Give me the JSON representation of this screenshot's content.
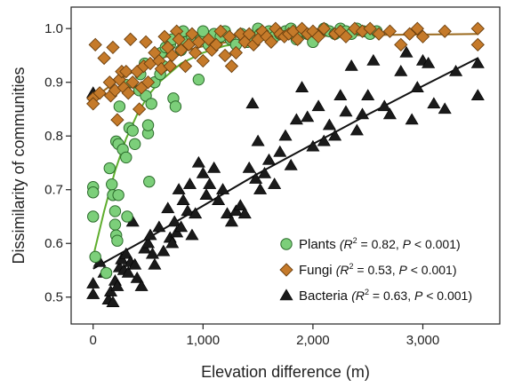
{
  "chart_data": {
    "type": "scatter",
    "title": "",
    "xlabel": "Elevation difference (m)",
    "ylabel": "Dissimilarity of communities",
    "xlim": [
      -200,
      3700
    ],
    "ylim": [
      0.45,
      1.04
    ],
    "x_ticks": [
      0,
      1000,
      2000,
      3000
    ],
    "x_tick_labels": [
      "0",
      "1,000",
      "2,000",
      "3,000"
    ],
    "y_ticks": [
      0.5,
      0.6,
      0.7,
      0.8,
      0.9,
      1.0
    ],
    "y_tick_labels": [
      "0.5",
      "0.6",
      "0.7",
      "0.8",
      "0.9",
      "1.0"
    ],
    "grid": false,
    "legend_position": "bottom-right",
    "series": [
      {
        "name": "Plants",
        "stats": [
          "(R",
          "2",
          " = 0.82, ",
          "P",
          " < 0.001)"
        ],
        "marker": "circle",
        "color": "#7ccf7a",
        "line_color": "#5fae2e",
        "fit_x": [
          0,
          100,
          200,
          300,
          400,
          500,
          600,
          800,
          1000,
          1200,
          1500,
          2000,
          2500,
          2600
        ],
        "fit_y": [
          0.575,
          0.66,
          0.735,
          0.795,
          0.84,
          0.875,
          0.9,
          0.935,
          0.955,
          0.968,
          0.978,
          0.986,
          0.99,
          0.99
        ],
        "points": [
          [
            0,
            0.705
          ],
          [
            0,
            0.695
          ],
          [
            0,
            0.65
          ],
          [
            20,
            0.575
          ],
          [
            120,
            0.545
          ],
          [
            150,
            0.74
          ],
          [
            170,
            0.71
          ],
          [
            180,
            0.69
          ],
          [
            200,
            0.66
          ],
          [
            200,
            0.635
          ],
          [
            210,
            0.615
          ],
          [
            220,
            0.605
          ],
          [
            230,
            0.69
          ],
          [
            210,
            0.79
          ],
          [
            230,
            0.785
          ],
          [
            240,
            0.855
          ],
          [
            270,
            0.775
          ],
          [
            300,
            0.76
          ],
          [
            300,
            0.895
          ],
          [
            310,
            0.65
          ],
          [
            330,
            0.815
          ],
          [
            360,
            0.81
          ],
          [
            380,
            0.785
          ],
          [
            420,
            0.885
          ],
          [
            430,
            0.915
          ],
          [
            470,
            0.935
          ],
          [
            480,
            0.875
          ],
          [
            500,
            0.805
          ],
          [
            500,
            0.82
          ],
          [
            510,
            0.715
          ],
          [
            530,
            0.86
          ],
          [
            560,
            0.9
          ],
          [
            610,
            0.915
          ],
          [
            620,
            0.955
          ],
          [
            640,
            0.93
          ],
          [
            660,
            0.965
          ],
          [
            700,
            0.97
          ],
          [
            720,
            0.98
          ],
          [
            730,
            0.87
          ],
          [
            750,
            0.855
          ],
          [
            800,
            0.96
          ],
          [
            820,
            0.995
          ],
          [
            850,
            0.975
          ],
          [
            900,
            0.985
          ],
          [
            960,
            0.905
          ],
          [
            980,
            0.98
          ],
          [
            1000,
            0.995
          ],
          [
            1050,
            0.97
          ],
          [
            1100,
            0.99
          ],
          [
            1160,
            0.985
          ],
          [
            1200,
            0.995
          ],
          [
            1250,
            0.98
          ],
          [
            1300,
            0.97
          ],
          [
            1350,
            0.99
          ],
          [
            1400,
            0.975
          ],
          [
            1450,
            0.985
          ],
          [
            1500,
            1.0
          ],
          [
            1520,
            0.99
          ],
          [
            1560,
            0.99
          ],
          [
            1600,
            0.995
          ],
          [
            1650,
            0.985
          ],
          [
            1700,
            0.99
          ],
          [
            1750,
            0.995
          ],
          [
            1800,
            1.0
          ],
          [
            1850,
            0.98
          ],
          [
            1900,
            0.995
          ],
          [
            1950,
            0.99
          ],
          [
            2000,
            0.975
          ],
          [
            2050,
            0.99
          ],
          [
            2100,
            1.0
          ],
          [
            2150,
            0.995
          ],
          [
            2200,
            0.99
          ],
          [
            2250,
            1.0
          ],
          [
            2300,
            0.995
          ],
          [
            2350,
            0.99
          ],
          [
            2400,
            1.0
          ],
          [
            2460,
            0.995
          ],
          [
            2520,
            0.99
          ],
          [
            2580,
            0.995
          ]
        ]
      },
      {
        "name": "Fungi",
        "stats": [
          "(R",
          "2",
          " = 0.53, ",
          "P",
          " < 0.001)"
        ],
        "marker": "diamond",
        "color": "#c57a2a",
        "line_color": "#9b6a1e",
        "fit_x": [
          0,
          100,
          200,
          300,
          400,
          500,
          600,
          800,
          1000,
          1200,
          1500,
          2000,
          2500,
          3000,
          3500
        ],
        "fit_y": [
          0.865,
          0.885,
          0.9,
          0.912,
          0.924,
          0.934,
          0.943,
          0.957,
          0.967,
          0.974,
          0.981,
          0.986,
          0.988,
          0.989,
          0.99
        ],
        "points": [
          [
            0,
            0.87
          ],
          [
            0,
            0.86
          ],
          [
            20,
            0.97
          ],
          [
            60,
            0.88
          ],
          [
            100,
            0.945
          ],
          [
            150,
            0.9
          ],
          [
            160,
            0.875
          ],
          [
            180,
            0.965
          ],
          [
            200,
            0.885
          ],
          [
            220,
            0.83
          ],
          [
            240,
            0.905
          ],
          [
            260,
            0.92
          ],
          [
            280,
            0.89
          ],
          [
            300,
            0.92
          ],
          [
            320,
            0.88
          ],
          [
            340,
            0.98
          ],
          [
            360,
            0.9
          ],
          [
            400,
            0.92
          ],
          [
            420,
            0.85
          ],
          [
            440,
            0.89
          ],
          [
            460,
            0.93
          ],
          [
            480,
            0.975
          ],
          [
            500,
            0.9
          ],
          [
            520,
            0.935
          ],
          [
            560,
            0.955
          ],
          [
            600,
            0.94
          ],
          [
            620,
            0.925
          ],
          [
            650,
            0.985
          ],
          [
            680,
            0.965
          ],
          [
            700,
            0.93
          ],
          [
            720,
            0.95
          ],
          [
            760,
            0.995
          ],
          [
            780,
            0.98
          ],
          [
            800,
            0.96
          ],
          [
            840,
            0.93
          ],
          [
            870,
            0.97
          ],
          [
            900,
            0.99
          ],
          [
            930,
            0.955
          ],
          [
            960,
            0.975
          ],
          [
            1000,
            0.94
          ],
          [
            1050,
            0.98
          ],
          [
            1080,
            0.96
          ],
          [
            1120,
            0.97
          ],
          [
            1160,
            0.995
          ],
          [
            1200,
            0.95
          ],
          [
            1240,
            0.985
          ],
          [
            1260,
            0.93
          ],
          [
            1300,
            0.955
          ],
          [
            1340,
            0.99
          ],
          [
            1380,
            0.975
          ],
          [
            1420,
            0.99
          ],
          [
            1460,
            0.97
          ],
          [
            1500,
            0.98
          ],
          [
            1540,
            0.995
          ],
          [
            1580,
            0.985
          ],
          [
            1620,
            0.975
          ],
          [
            1660,
            1.0
          ],
          [
            1700,
            0.99
          ],
          [
            1740,
            0.985
          ],
          [
            1780,
            0.99
          ],
          [
            1820,
            0.995
          ],
          [
            1860,
            0.98
          ],
          [
            1900,
            1.0
          ],
          [
            1950,
            0.99
          ],
          [
            2000,
            0.995
          ],
          [
            2050,
            0.985
          ],
          [
            2100,
            1.0
          ],
          [
            2200,
            0.99
          ],
          [
            2250,
            0.995
          ],
          [
            2300,
            0.985
          ],
          [
            2380,
            1.0
          ],
          [
            2450,
            0.995
          ],
          [
            2520,
            1.0
          ],
          [
            2600,
            0.99
          ],
          [
            2700,
            0.995
          ],
          [
            2800,
            0.97
          ],
          [
            2880,
            0.99
          ],
          [
            2950,
            1.0
          ],
          [
            3000,
            0.985
          ],
          [
            3200,
            0.995
          ],
          [
            3500,
            1.0
          ],
          [
            3500,
            0.97
          ]
        ]
      },
      {
        "name": "Bacteria",
        "stats": [
          "(R",
          "2",
          " = 0.63, ",
          "P",
          " < 0.001)"
        ],
        "marker": "triangle",
        "color": "#1a1a1a",
        "line_color": "#111111",
        "fit_x": [
          0,
          500,
          1000,
          1500,
          2000,
          2500,
          3000,
          3500
        ],
        "fit_y": [
          0.553,
          0.61,
          0.67,
          0.73,
          0.785,
          0.84,
          0.893,
          0.945
        ],
        "points": [
          [
            0,
            0.88
          ],
          [
            0,
            0.525
          ],
          [
            0,
            0.505
          ],
          [
            60,
            0.565
          ],
          [
            100,
            0.545
          ],
          [
            140,
            0.495
          ],
          [
            160,
            0.51
          ],
          [
            180,
            0.49
          ],
          [
            200,
            0.53
          ],
          [
            220,
            0.52
          ],
          [
            240,
            0.555
          ],
          [
            260,
            0.57
          ],
          [
            280,
            0.55
          ],
          [
            300,
            0.58
          ],
          [
            320,
            0.545
          ],
          [
            340,
            0.565
          ],
          [
            360,
            0.64
          ],
          [
            380,
            0.56
          ],
          [
            400,
            0.535
          ],
          [
            440,
            0.52
          ],
          [
            470,
            0.59
          ],
          [
            500,
            0.6
          ],
          [
            520,
            0.615
          ],
          [
            540,
            0.58
          ],
          [
            560,
            0.56
          ],
          [
            600,
            0.63
          ],
          [
            640,
            0.585
          ],
          [
            680,
            0.665
          ],
          [
            700,
            0.61
          ],
          [
            720,
            0.6
          ],
          [
            740,
            0.64
          ],
          [
            760,
            0.62
          ],
          [
            780,
            0.7
          ],
          [
            800,
            0.63
          ],
          [
            820,
            0.68
          ],
          [
            860,
            0.66
          ],
          [
            880,
            0.71
          ],
          [
            900,
            0.615
          ],
          [
            930,
            0.655
          ],
          [
            960,
            0.75
          ],
          [
            1000,
            0.73
          ],
          [
            1030,
            0.69
          ],
          [
            1060,
            0.71
          ],
          [
            1100,
            0.74
          ],
          [
            1140,
            0.68
          ],
          [
            1180,
            0.7
          ],
          [
            1220,
            0.655
          ],
          [
            1260,
            0.64
          ],
          [
            1300,
            0.66
          ],
          [
            1340,
            0.67
          ],
          [
            1380,
            0.655
          ],
          [
            1420,
            0.74
          ],
          [
            1450,
            0.86
          ],
          [
            1480,
            0.72
          ],
          [
            1500,
            0.79
          ],
          [
            1520,
            0.7
          ],
          [
            1560,
            0.73
          ],
          [
            1600,
            0.755
          ],
          [
            1650,
            0.71
          ],
          [
            1700,
            0.77
          ],
          [
            1750,
            0.8
          ],
          [
            1800,
            0.745
          ],
          [
            1850,
            0.83
          ],
          [
            1900,
            0.89
          ],
          [
            1950,
            0.835
          ],
          [
            2000,
            0.78
          ],
          [
            2050,
            0.855
          ],
          [
            2100,
            0.79
          ],
          [
            2150,
            0.82
          ],
          [
            2200,
            0.8
          ],
          [
            2250,
            0.875
          ],
          [
            2300,
            0.845
          ],
          [
            2350,
            0.93
          ],
          [
            2400,
            0.81
          ],
          [
            2450,
            0.84
          ],
          [
            2500,
            0.875
          ],
          [
            2550,
            0.94
          ],
          [
            2650,
            0.855
          ],
          [
            2700,
            0.84
          ],
          [
            2800,
            0.92
          ],
          [
            2850,
            0.955
          ],
          [
            2900,
            0.83
          ],
          [
            2950,
            0.89
          ],
          [
            3000,
            0.94
          ],
          [
            3050,
            0.935
          ],
          [
            3100,
            0.86
          ],
          [
            3200,
            0.85
          ],
          [
            3300,
            0.92
          ],
          [
            3500,
            0.875
          ],
          [
            3500,
            0.935
          ]
        ]
      }
    ]
  }
}
